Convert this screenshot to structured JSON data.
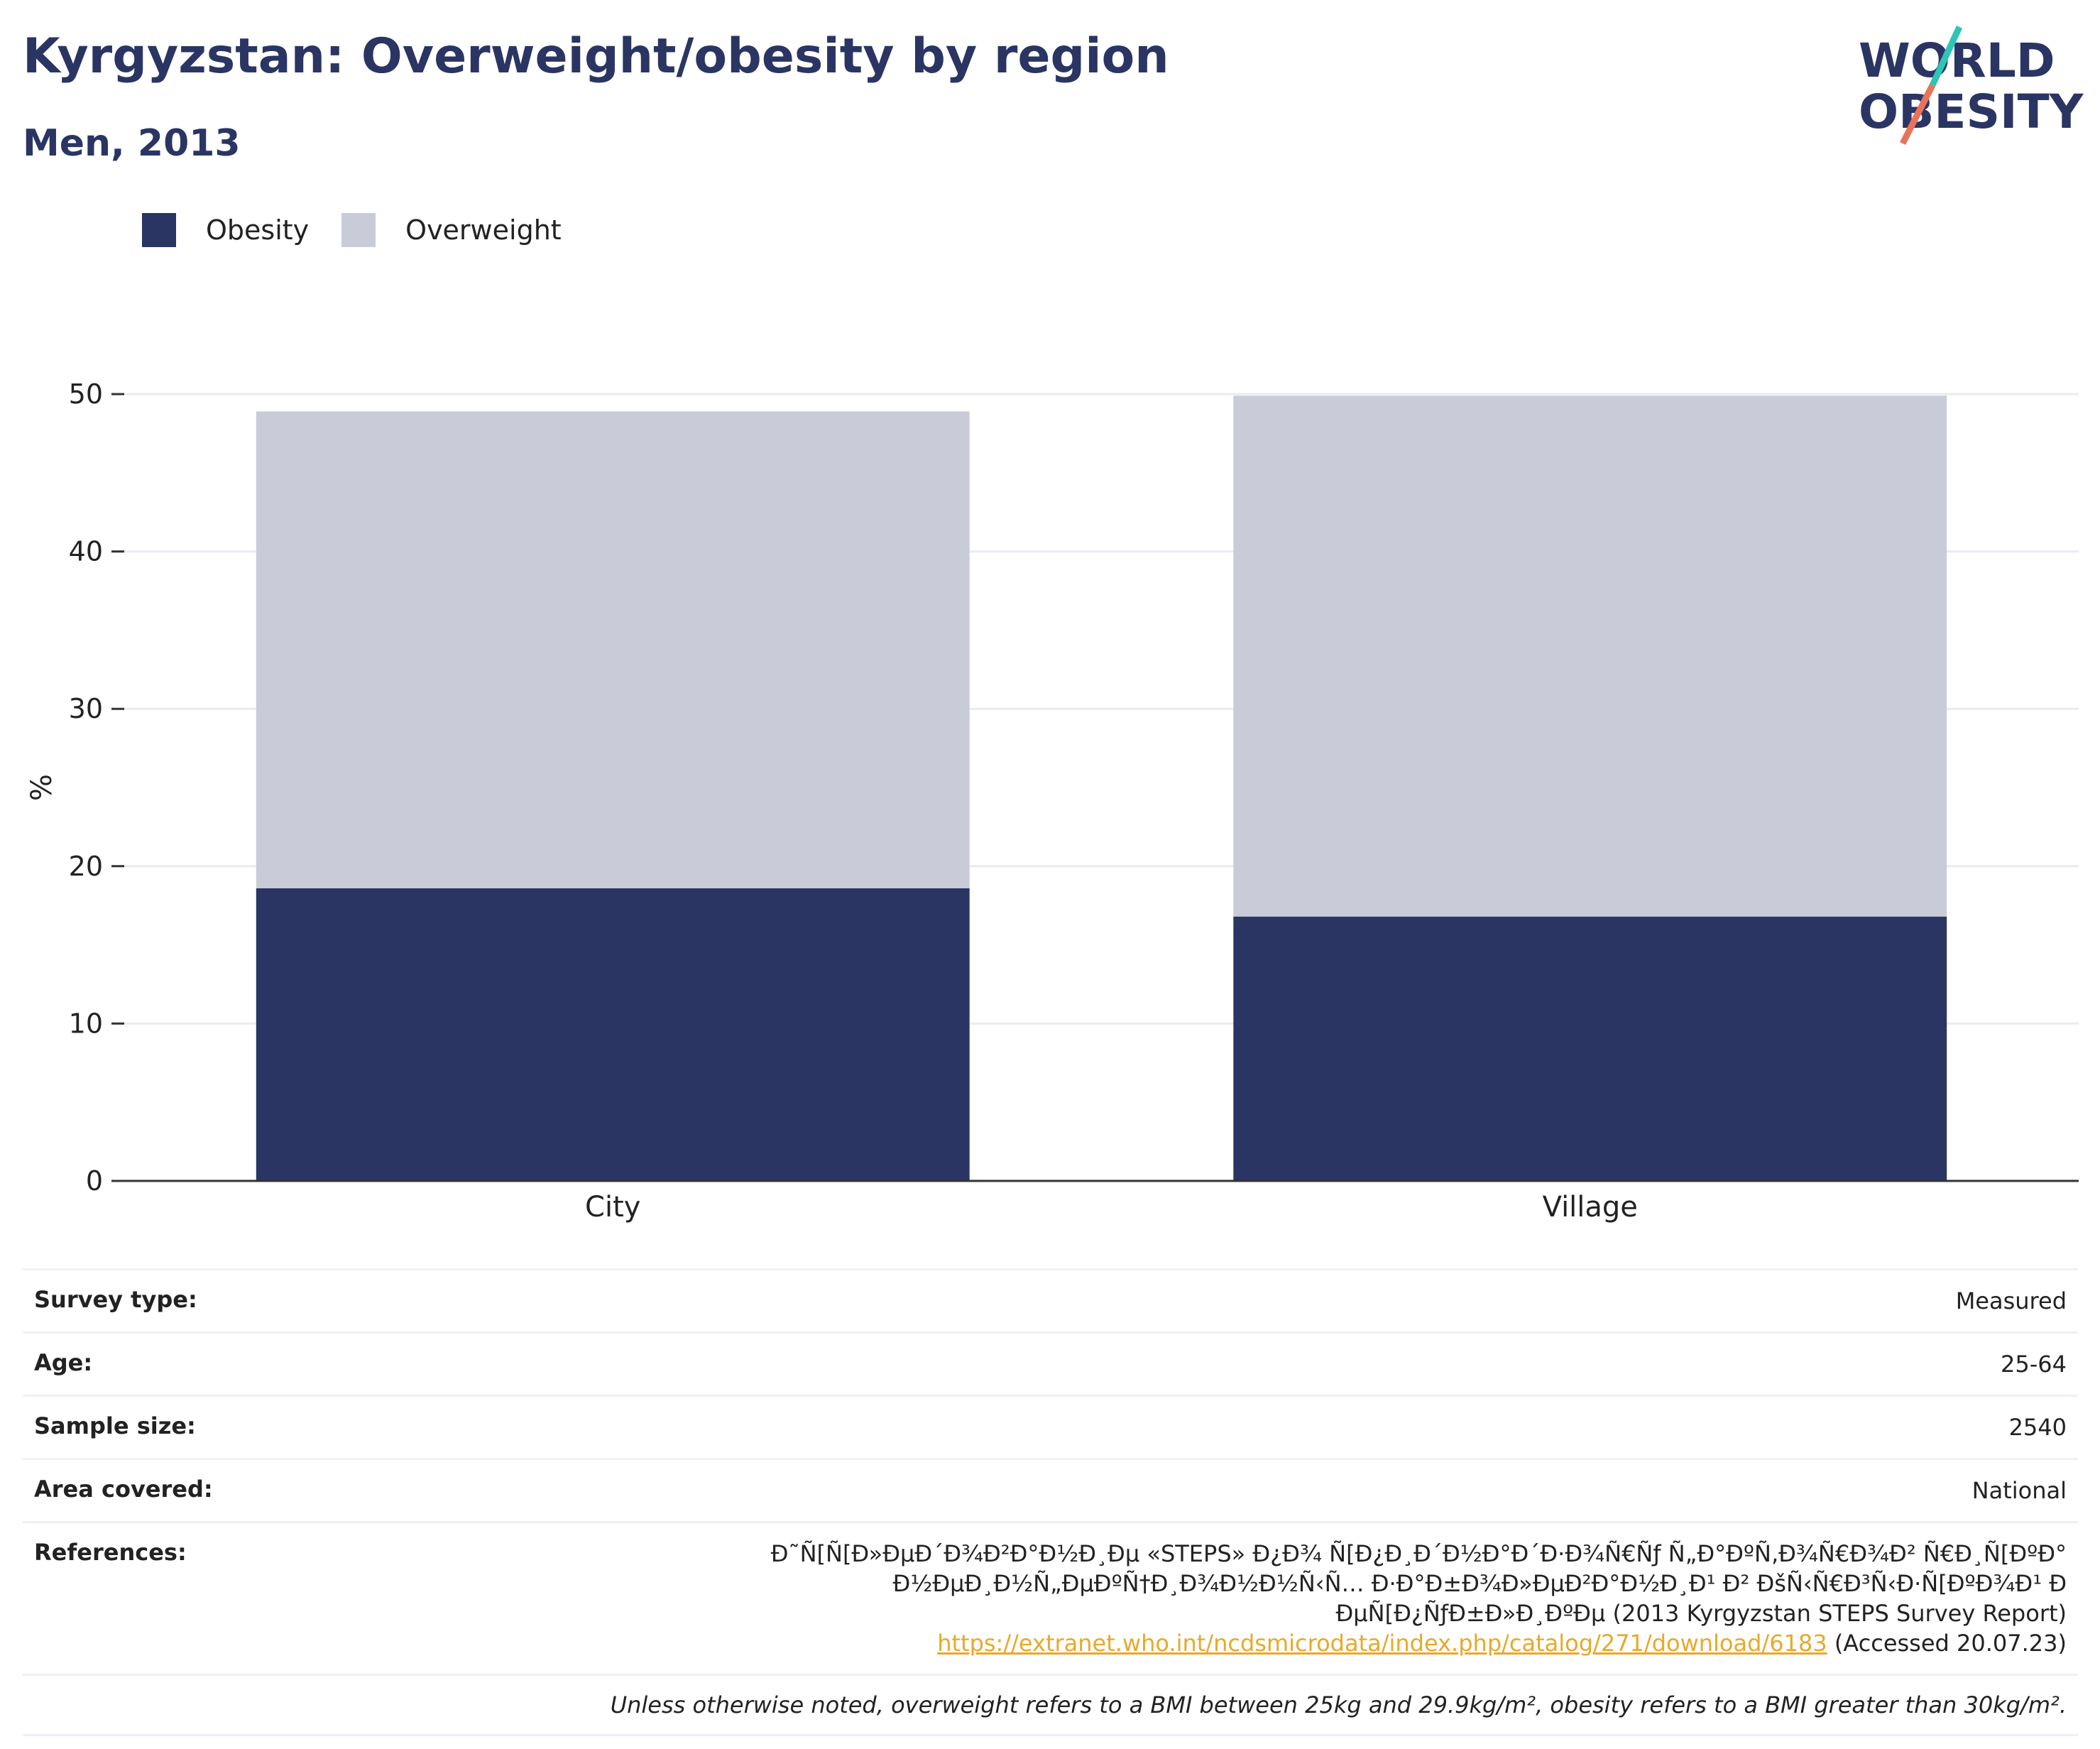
{
  "title": "Kyrgyzstan: Overweight/obesity by region",
  "subtitle": "Men, 2013",
  "logo": {
    "line1": "WORLD",
    "line2": "OBESITY",
    "colors": {
      "text": "#2a3563",
      "slash_top": "#2ec4b6",
      "slash_bottom": "#e8735a"
    }
  },
  "legend": [
    {
      "label": "Obesity",
      "color": "#2a3563"
    },
    {
      "label": "Overweight",
      "color": "#c9ccd8"
    }
  ],
  "chart_data": {
    "type": "bar",
    "stacked": true,
    "categories": [
      "City",
      "Village"
    ],
    "series": [
      {
        "name": "Obesity",
        "values": [
          18.6,
          16.8
        ],
        "color": "#2a3563"
      },
      {
        "name": "Overweight",
        "values": [
          30.3,
          33.1
        ],
        "color": "#c9ccd8"
      }
    ],
    "ylabel": "%",
    "ylim": [
      0,
      50
    ],
    "yticks": [
      0,
      10,
      20,
      30,
      40,
      50
    ],
    "grid": true
  },
  "info": {
    "survey_type": {
      "key": "Survey type:",
      "value": "Measured"
    },
    "age": {
      "key": "Age:",
      "value": "25-64"
    },
    "sample_size": {
      "key": "Sample size:",
      "value": "2540"
    },
    "area_covered": {
      "key": "Area covered:",
      "value": "National"
    },
    "references": {
      "key": "References:",
      "text_before": "Ð˜Ñ[Ñ[Ð»ÐµÐ´Ð¾Ð²Ð°Ð½Ð¸Ðµ «STEPS» Ð¿Ð¾ Ñ[Ð¿Ð¸Ð´Ð½Ð°Ð´Ð·Ð¾Ñ€Ñƒ Ñ„Ð°ÐºÑ‚Ð¾Ñ€Ð¾Ð² Ñ€Ð¸Ñ[ÐºÐ° Ð½ÐµÐ¸Ð½Ñ„ÐµÐºÑ†Ð¸Ð¾Ð½Ð½Ñ‹Ñ… Ð·Ð°Ð±Ð¾Ð»ÐµÐ²Ð°Ð½Ð¸Ð¹ Ð² ÐšÑ‹Ñ€Ð³Ñ‹Ð·Ñ[ÐºÐ¾Ð¹ Ð ÐµÑ[Ð¿ÑƒÐ±Ð»Ð¸ÐºÐµ (2013 Kyrgyzstan STEPS Survey Report)",
      "link": "https://extranet.who.int/ncdsmicrodata/index.php/catalog/271/download/6183",
      "text_after": "(Accessed 20.07.23)"
    },
    "note": "Unless otherwise noted, overweight refers to a BMI between 25kg and 29.9kg/m², obesity refers to a BMI greater than 30kg/m²."
  }
}
